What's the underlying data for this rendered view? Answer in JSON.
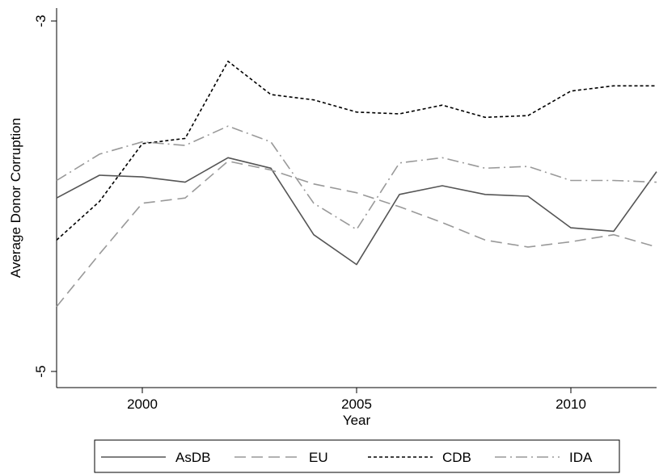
{
  "chart_data": {
    "type": "line",
    "title": "",
    "xlabel": "Year",
    "ylabel": "Average Donor Corruption",
    "xlim": [
      1998,
      2012
    ],
    "ylim": [
      -5,
      -3
    ],
    "xticks": [
      2000,
      2005,
      2010
    ],
    "xtick_labels": [
      "2000",
      "2005",
      "2010"
    ],
    "yticks": [
      -3,
      -5
    ],
    "ytick_labels": [
      "-3",
      "-5"
    ],
    "grid": false,
    "legend_position": "bottom",
    "x": [
      1998,
      1999,
      2000,
      2001,
      2002,
      2003,
      2004,
      2005,
      2006,
      2007,
      2008,
      2009,
      2010,
      2011,
      2012
    ],
    "series": [
      {
        "name": "AsDB",
        "color": "#555555",
        "style": "solid",
        "values": [
          -4.01,
          -3.88,
          -3.89,
          -3.92,
          -3.78,
          -3.84,
          -4.22,
          -4.39,
          -3.99,
          -3.94,
          -3.99,
          -4.0,
          -4.18,
          -4.2,
          -3.86
        ]
      },
      {
        "name": "EU",
        "color": "#999999",
        "style": "dash",
        "values": [
          -4.63,
          -4.33,
          -4.04,
          -4.01,
          -3.8,
          -3.85,
          -3.93,
          -3.98,
          -4.06,
          -4.15,
          -4.25,
          -4.29,
          -4.26,
          -4.22,
          -4.29
        ]
      },
      {
        "name": "CDB",
        "color": "#000000",
        "style": "shortdash",
        "values": [
          -4.25,
          -4.03,
          -3.7,
          -3.67,
          -3.23,
          -3.42,
          -3.45,
          -3.52,
          -3.53,
          -3.48,
          -3.55,
          -3.54,
          -3.4,
          -3.37,
          -3.37
        ]
      },
      {
        "name": "IDA",
        "color": "#999999",
        "style": "dashdot",
        "values": [
          -3.91,
          -3.76,
          -3.69,
          -3.71,
          -3.6,
          -3.69,
          -4.04,
          -4.19,
          -3.81,
          -3.78,
          -3.84,
          -3.83,
          -3.91,
          -3.91,
          -3.92
        ]
      }
    ]
  }
}
